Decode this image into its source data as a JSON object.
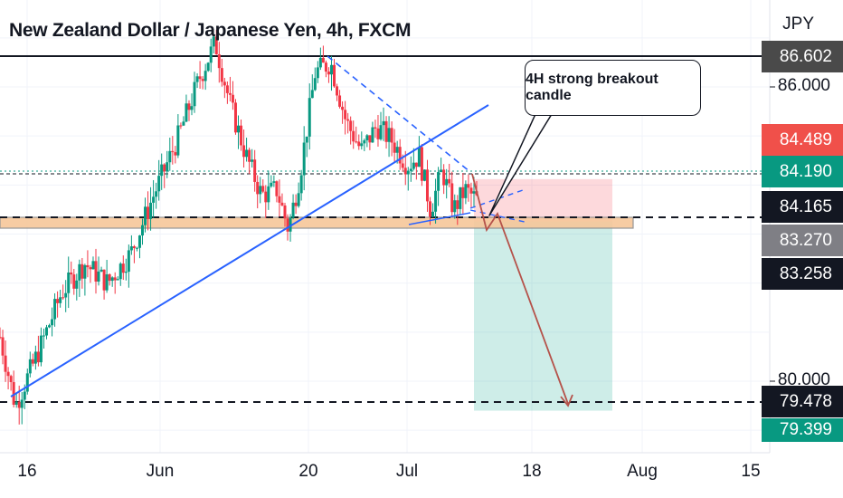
{
  "header": {
    "title": "New Zealand Dollar / Japanese Yen, 4h, FXCM",
    "currency": "JPY"
  },
  "annotation": {
    "callout_text": "4H strong breakout candle"
  },
  "chart_data": {
    "type": "candlestick",
    "title": "New Zealand Dollar / Japanese Yen, 4h, FXCM",
    "unit": "JPY",
    "x_ticks": [
      "16",
      "Jun",
      "20",
      "Jul",
      "18",
      "Aug",
      "15"
    ],
    "y_ticks": [
      {
        "label": "86.000",
        "value": 86.0
      },
      {
        "label": "80.000",
        "value": 80.0
      }
    ],
    "ylim": [
      78.7,
      87.6
    ],
    "grid": true,
    "price_labels": [
      {
        "label": "86.602",
        "value": 86.602,
        "color": "#4a4a4a"
      },
      {
        "label": "84.489",
        "value": 84.489,
        "color": "#f0504a"
      },
      {
        "label": "84.190",
        "value": 84.19,
        "color": "#089981"
      },
      {
        "label": "84.165",
        "value": 84.165,
        "color": "#131722"
      },
      {
        "label": "83.270",
        "value": 83.27,
        "color": "#7f7f85"
      },
      {
        "label": "83.258",
        "value": 83.258,
        "color": "#131722"
      },
      {
        "label": "79.478",
        "value": 79.478,
        "color": "#131722"
      },
      {
        "label": "79.399",
        "value": 79.399,
        "color": "#089981"
      }
    ],
    "horizontal_levels": [
      {
        "value": 86.602,
        "style": "solid"
      },
      {
        "value": 84.165,
        "style": "dashed"
      },
      {
        "value": 79.478,
        "style": "dashed"
      }
    ],
    "support_zone": [
      83.2,
      83.36
    ],
    "position": {
      "side": "short",
      "entry": 83.258,
      "stop": 84.489,
      "target": 79.399
    },
    "trend_points": [
      {
        "t": 0.0,
        "v": 80.9
      },
      {
        "t": 0.02,
        "v": 79.5
      },
      {
        "t": 0.05,
        "v": 80.6
      },
      {
        "t": 0.08,
        "v": 81.8
      },
      {
        "t": 0.11,
        "v": 82.4
      },
      {
        "t": 0.14,
        "v": 82.0
      },
      {
        "t": 0.17,
        "v": 82.6
      },
      {
        "t": 0.2,
        "v": 83.8
      },
      {
        "t": 0.23,
        "v": 84.9
      },
      {
        "t": 0.26,
        "v": 86.2
      },
      {
        "t": 0.28,
        "v": 86.9
      },
      {
        "t": 0.3,
        "v": 85.6
      },
      {
        "t": 0.32,
        "v": 84.6
      },
      {
        "t": 0.34,
        "v": 83.8
      },
      {
        "t": 0.36,
        "v": 83.9
      },
      {
        "t": 0.375,
        "v": 83.1
      },
      {
        "t": 0.39,
        "v": 84.2
      },
      {
        "t": 0.41,
        "v": 86.3
      },
      {
        "t": 0.43,
        "v": 86.5
      },
      {
        "t": 0.45,
        "v": 85.3
      },
      {
        "t": 0.47,
        "v": 84.7
      },
      {
        "t": 0.49,
        "v": 85.2
      },
      {
        "t": 0.51,
        "v": 84.9
      },
      {
        "t": 0.53,
        "v": 84.4
      },
      {
        "t": 0.545,
        "v": 84.6
      },
      {
        "t": 0.56,
        "v": 83.5
      },
      {
        "t": 0.575,
        "v": 84.3
      },
      {
        "t": 0.59,
        "v": 83.5
      },
      {
        "t": 0.605,
        "v": 83.9
      },
      {
        "t": 0.62,
        "v": 83.7
      }
    ],
    "projection": [
      {
        "t": 0.62,
        "v": 83.9
      },
      {
        "t": 0.635,
        "v": 83.0
      },
      {
        "t": 0.65,
        "v": 83.3
      },
      {
        "t": 0.74,
        "v": 79.5
      }
    ]
  }
}
